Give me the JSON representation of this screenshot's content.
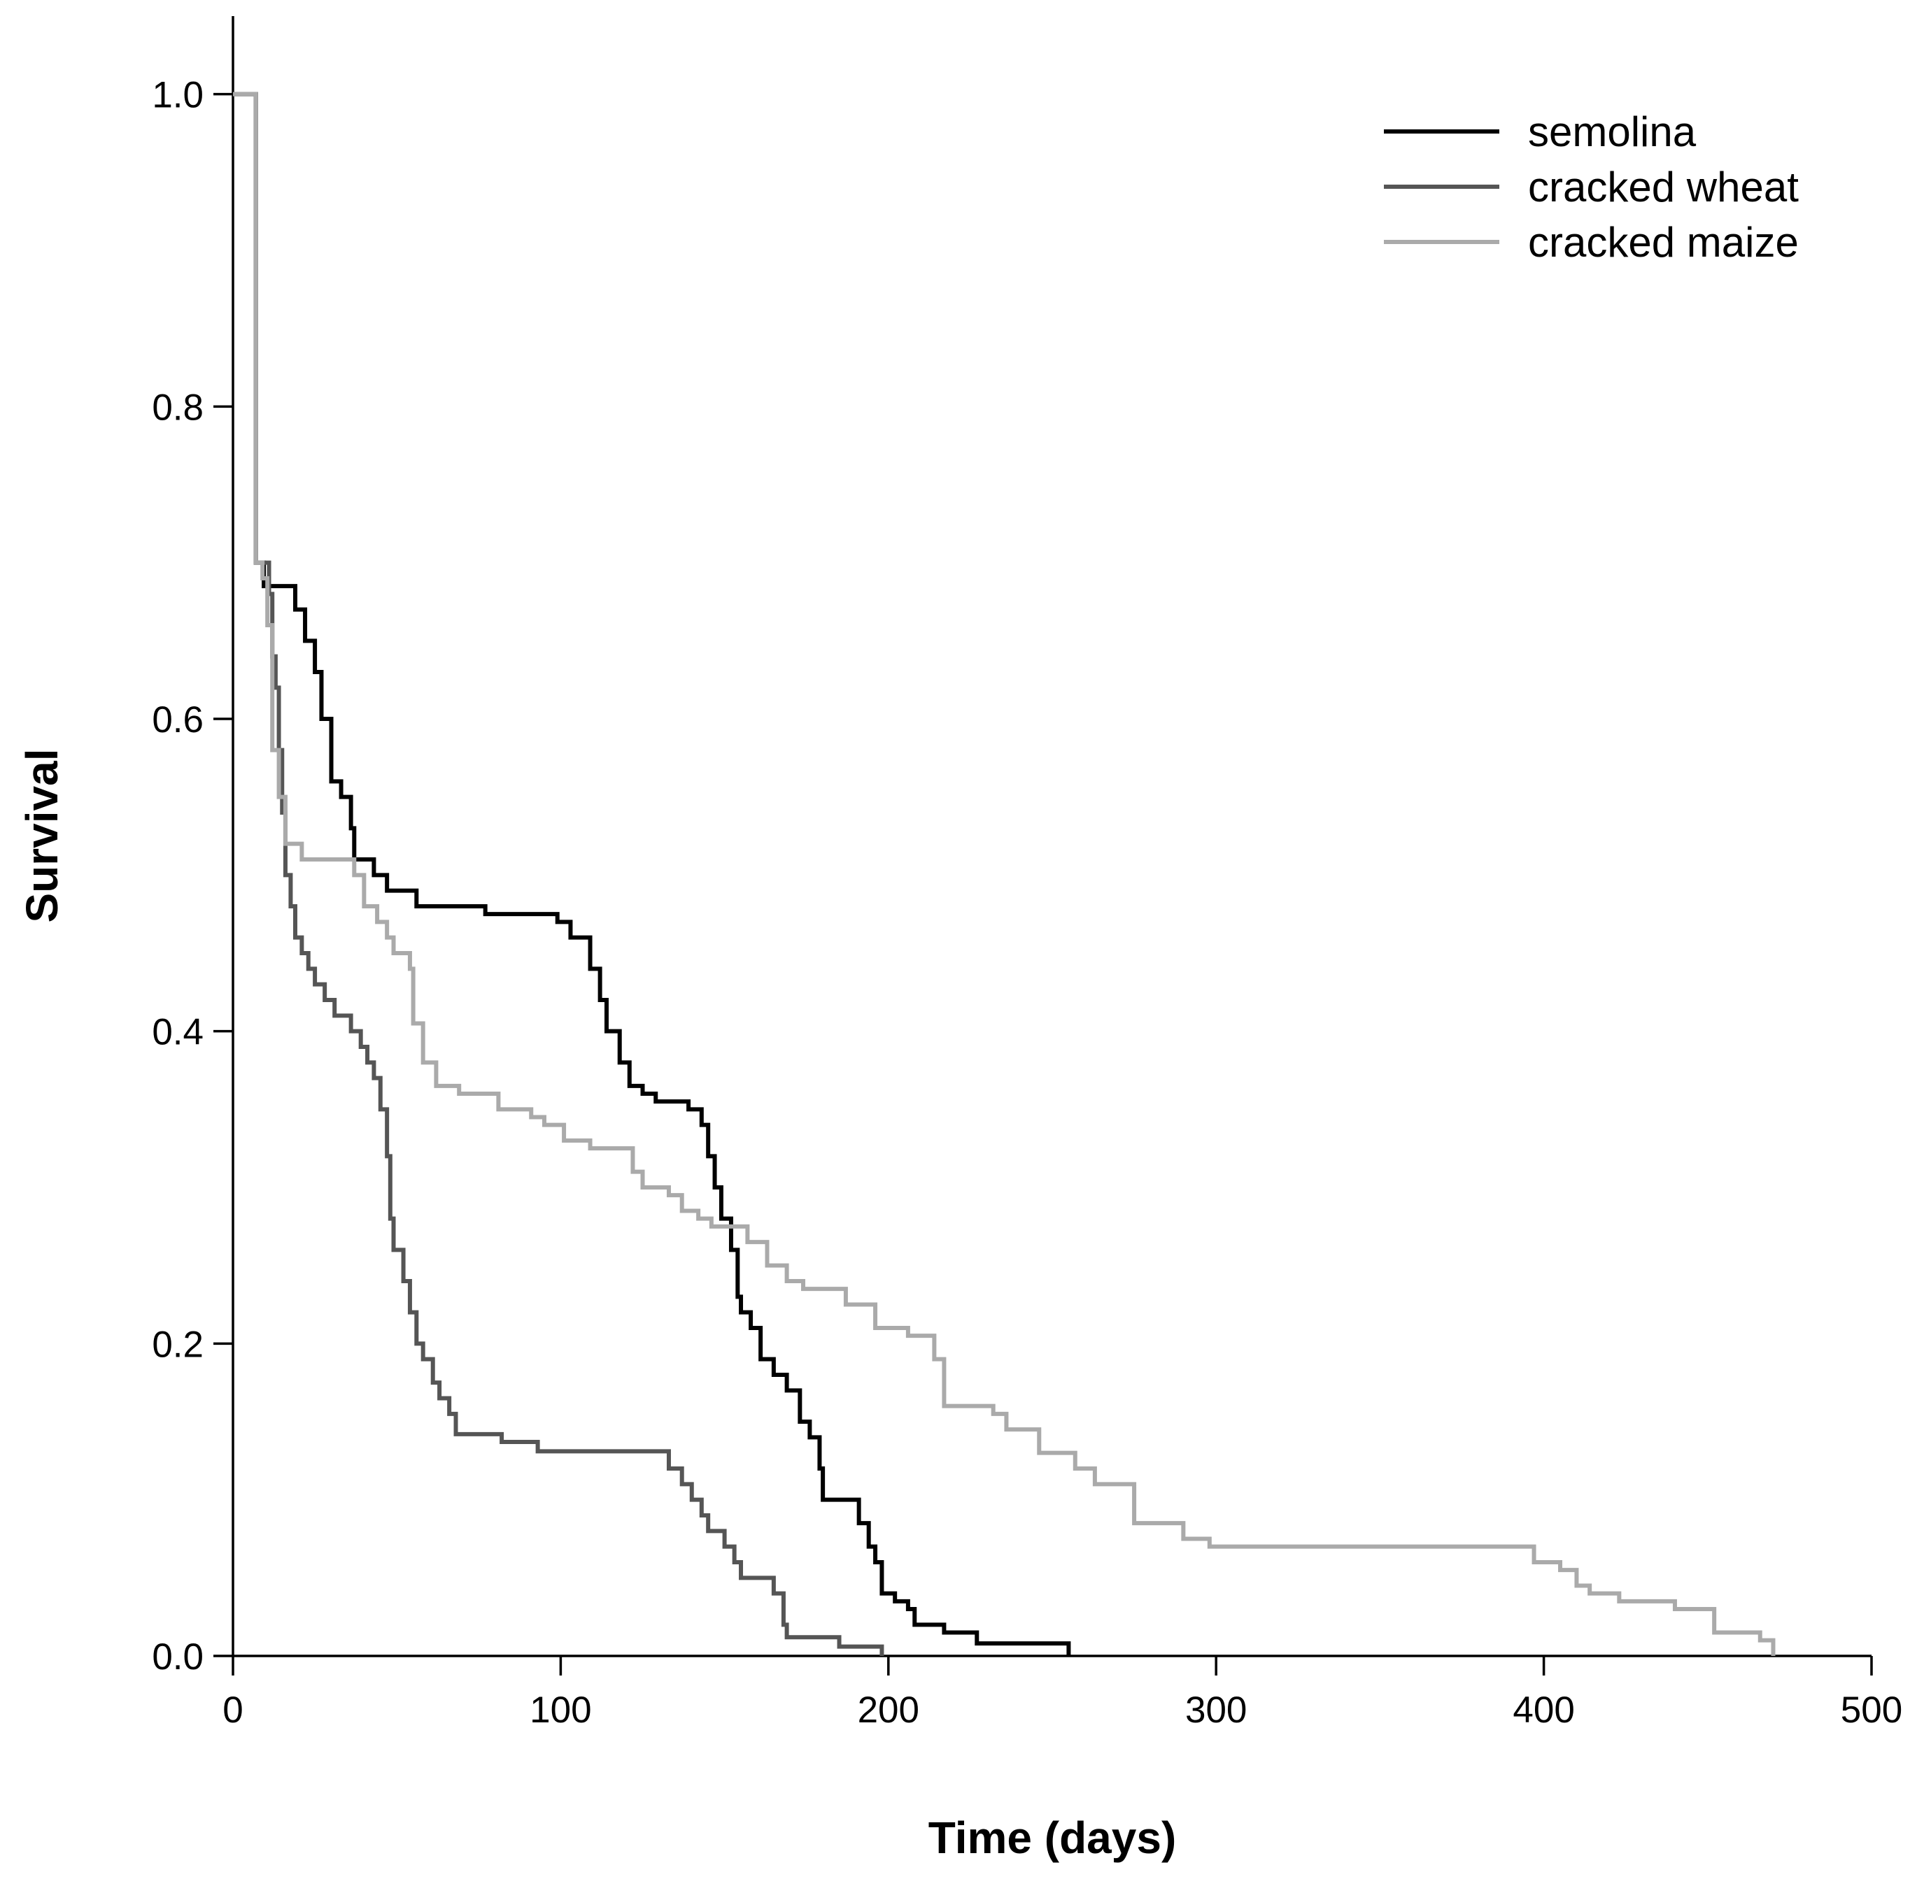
{
  "chart_data": {
    "type": "step",
    "x_label": "Time (days)",
    "y_label": "Survival",
    "xlim": [
      0,
      500
    ],
    "xticks": [
      0,
      100,
      200,
      300,
      400,
      500
    ],
    "ylim": [
      0,
      1.05
    ],
    "yticks": [
      {
        "value": 0,
        "label": "0.0"
      },
      {
        "value": 0.2,
        "label": "0.2"
      },
      {
        "value": 0.4,
        "label": "0.4"
      },
      {
        "value": 0.6,
        "label": "0.6"
      },
      {
        "value": 0.8,
        "label": "0.8"
      },
      {
        "value": 1,
        "label": "1.0"
      }
    ],
    "legend": "top-right",
    "series": [
      {
        "name": "semolina",
        "color": "#000000",
        "x": [
          0,
          7,
          9.4,
          19,
          22,
          25,
          27,
          30,
          33,
          36,
          37,
          43,
          47,
          56,
          77,
          99,
          103,
          109,
          112,
          114,
          118,
          121,
          125,
          129,
          139,
          143,
          145,
          147,
          149,
          152,
          154,
          155,
          158,
          161,
          165,
          169,
          173,
          176,
          179,
          180,
          191,
          194,
          196,
          198,
          202,
          206,
          208,
          217,
          227,
          255
        ],
        "values": [
          1.0,
          0.7,
          0.685,
          0.67,
          0.65,
          0.63,
          0.6,
          0.56,
          0.55,
          0.53,
          0.51,
          0.5,
          0.49,
          0.48,
          0.475,
          0.47,
          0.46,
          0.44,
          0.42,
          0.4,
          0.38,
          0.365,
          0.36,
          0.355,
          0.35,
          0.34,
          0.32,
          0.3,
          0.28,
          0.26,
          0.23,
          0.22,
          0.21,
          0.19,
          0.18,
          0.17,
          0.15,
          0.14,
          0.12,
          0.1,
          0.085,
          0.07,
          0.06,
          0.04,
          0.035,
          0.03,
          0.02,
          0.015,
          0.008,
          0.0
        ]
      },
      {
        "name": "cracked wheat",
        "color": "#555555",
        "x": [
          0,
          7,
          11,
          12,
          13,
          14,
          15,
          16,
          17.6,
          19,
          21,
          23,
          25,
          28,
          31,
          36,
          39,
          41,
          43,
          45,
          47,
          48,
          49,
          52,
          54,
          56,
          58,
          61,
          63,
          66,
          68,
          82,
          93,
          133,
          137,
          140,
          143,
          145,
          150,
          153,
          155,
          165,
          168,
          169,
          185,
          198
        ],
        "values": [
          1.0,
          0.7,
          0.68,
          0.64,
          0.62,
          0.58,
          0.54,
          0.5,
          0.48,
          0.46,
          0.45,
          0.44,
          0.43,
          0.42,
          0.41,
          0.4,
          0.39,
          0.38,
          0.37,
          0.35,
          0.32,
          0.28,
          0.26,
          0.24,
          0.22,
          0.2,
          0.19,
          0.175,
          0.165,
          0.155,
          0.142,
          0.137,
          0.131,
          0.12,
          0.11,
          0.1,
          0.09,
          0.08,
          0.07,
          0.06,
          0.05,
          0.04,
          0.02,
          0.012,
          0.006,
          0.0
        ]
      },
      {
        "name": "cracked maize",
        "color": "#aaaaaa",
        "x": [
          0,
          7,
          9,
          10.5,
          12,
          14,
          16,
          21,
          37,
          40,
          44,
          47,
          49,
          54,
          55,
          58,
          62,
          69,
          81,
          91,
          95,
          101,
          109,
          122,
          125,
          133,
          137,
          142,
          146,
          157,
          163,
          169,
          174,
          187,
          196,
          206,
          214,
          217,
          232,
          236,
          246,
          257,
          263,
          275,
          290,
          298,
          397,
          405,
          410,
          414,
          423,
          440,
          452,
          466,
          470
        ],
        "values": [
          1.0,
          0.7,
          0.69,
          0.66,
          0.58,
          0.55,
          0.52,
          0.51,
          0.5,
          0.48,
          0.47,
          0.46,
          0.45,
          0.44,
          0.405,
          0.38,
          0.365,
          0.36,
          0.35,
          0.345,
          0.34,
          0.33,
          0.325,
          0.31,
          0.3,
          0.295,
          0.285,
          0.28,
          0.275,
          0.265,
          0.25,
          0.24,
          0.235,
          0.225,
          0.21,
          0.205,
          0.19,
          0.16,
          0.155,
          0.145,
          0.13,
          0.12,
          0.11,
          0.085,
          0.075,
          0.07,
          0.06,
          0.055,
          0.045,
          0.04,
          0.035,
          0.03,
          0.015,
          0.01,
          0.0
        ]
      }
    ]
  }
}
